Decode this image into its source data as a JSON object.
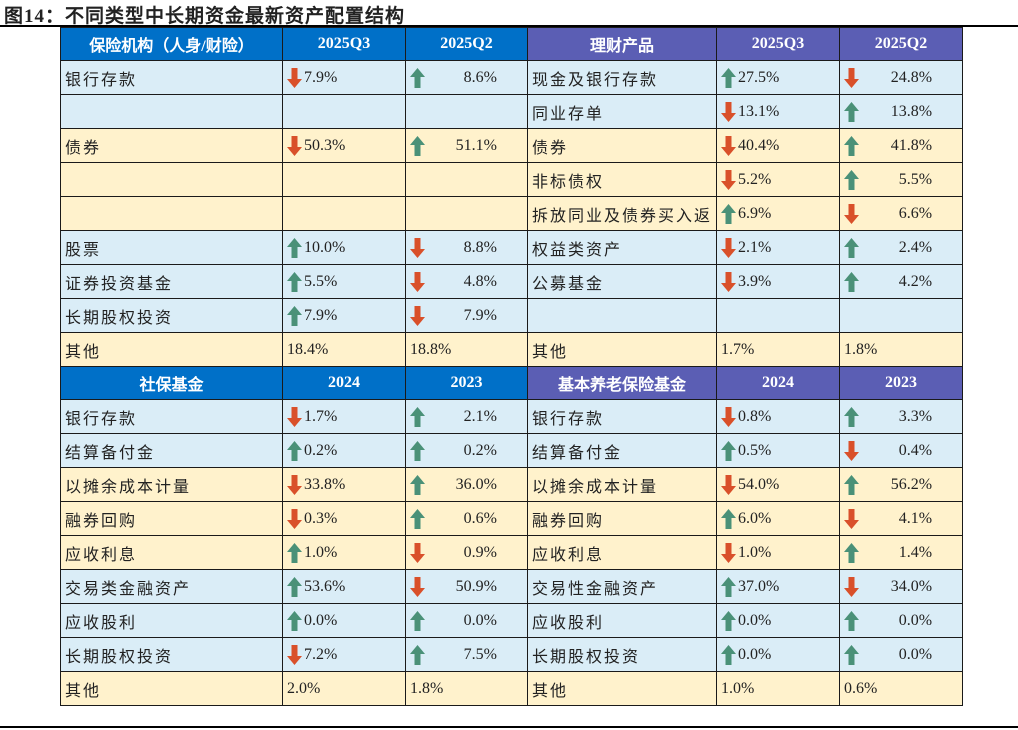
{
  "title": "图14：不同类型中长期资金最新资产配置结构",
  "colors": {
    "up": "#4A9178",
    "down": "#D9502A",
    "header_blue": "#0070C8",
    "header_purple": "#5B5EB4",
    "row_blue": "#DAEDF7",
    "row_yellow": "#FFF2CC"
  },
  "sections": [
    {
      "headers": [
        "保险机构（人身/财险）",
        "2025Q3",
        "2025Q2",
        "理财产品",
        "2025Q3",
        "2025Q2"
      ],
      "rows": [
        {
          "color": "blue",
          "l": "银行存款",
          "l1": {
            "dir": "down",
            "v": "7.9%"
          },
          "l2": {
            "dir": "up",
            "v": "8.6%"
          },
          "r": "现金及银行存款",
          "r1": {
            "dir": "up",
            "v": "27.5%"
          },
          "r2": {
            "dir": "down",
            "v": "24.8%"
          }
        },
        {
          "color": "blue",
          "l": "",
          "l1": null,
          "l2": null,
          "r": "同业存单",
          "r1": {
            "dir": "down",
            "v": "13.1%"
          },
          "r2": {
            "dir": "up",
            "v": "13.8%"
          }
        },
        {
          "color": "yellow",
          "l": "债券",
          "l1": {
            "dir": "down",
            "v": "50.3%"
          },
          "l2": {
            "dir": "up",
            "v": "51.1%"
          },
          "r": "债券",
          "r1": {
            "dir": "down",
            "v": "40.4%"
          },
          "r2": {
            "dir": "up",
            "v": "41.8%"
          }
        },
        {
          "color": "yellow",
          "l": "",
          "l1": null,
          "l2": null,
          "r": "非标债权",
          "r1": {
            "dir": "down",
            "v": "5.2%"
          },
          "r2": {
            "dir": "up",
            "v": "5.5%"
          }
        },
        {
          "color": "yellow",
          "l": "",
          "l1": null,
          "l2": null,
          "r": "拆放同业及债券买入返",
          "r1": {
            "dir": "up",
            "v": "6.9%"
          },
          "r2": {
            "dir": "down",
            "v": "6.6%"
          }
        },
        {
          "color": "blue",
          "l": "股票",
          "l1": {
            "dir": "up",
            "v": "10.0%"
          },
          "l2": {
            "dir": "down",
            "v": "8.8%"
          },
          "r": "权益类资产",
          "r1": {
            "dir": "down",
            "v": "2.1%"
          },
          "r2": {
            "dir": "up",
            "v": "2.4%"
          }
        },
        {
          "color": "blue",
          "l": "证券投资基金",
          "l1": {
            "dir": "up",
            "v": "5.5%"
          },
          "l2": {
            "dir": "down",
            "v": "4.8%"
          },
          "r": "公募基金",
          "r1": {
            "dir": "down",
            "v": "3.9%"
          },
          "r2": {
            "dir": "up",
            "v": "4.2%"
          }
        },
        {
          "color": "blue",
          "l": "长期股权投资",
          "l1": {
            "dir": "up",
            "v": "7.9%"
          },
          "l2": {
            "dir": "down",
            "v": "7.9%"
          },
          "r": "",
          "r1": null,
          "r2": null
        },
        {
          "color": "yellow",
          "l": "其他",
          "l1": {
            "dir": "",
            "v": "18.4%"
          },
          "l2": {
            "dir": "",
            "v": "18.8%"
          },
          "r": "其他",
          "r1": {
            "dir": "",
            "v": "1.7%"
          },
          "r2": {
            "dir": "",
            "v": "1.8%"
          }
        }
      ]
    },
    {
      "headers": [
        "社保基金",
        "2024",
        "2023",
        "基本养老保险基金",
        "2024",
        "2023"
      ],
      "rows": [
        {
          "color": "blue",
          "l": "银行存款",
          "l1": {
            "dir": "down",
            "v": "1.7%"
          },
          "l2": {
            "dir": "up",
            "v": "2.1%"
          },
          "r": "银行存款",
          "r1": {
            "dir": "down",
            "v": "0.8%"
          },
          "r2": {
            "dir": "up",
            "v": "3.3%"
          }
        },
        {
          "color": "blue",
          "l": "结算备付金",
          "l1": {
            "dir": "up",
            "v": "0.2%"
          },
          "l2": {
            "dir": "up",
            "v": "0.2%"
          },
          "r": "结算备付金",
          "r1": {
            "dir": "up",
            "v": "0.5%"
          },
          "r2": {
            "dir": "down",
            "v": "0.4%"
          }
        },
        {
          "color": "yellow",
          "l": "以摊余成本计量",
          "l1": {
            "dir": "down",
            "v": "33.8%"
          },
          "l2": {
            "dir": "up",
            "v": "36.0%"
          },
          "r": "以摊余成本计量",
          "r1": {
            "dir": "down",
            "v": "54.0%"
          },
          "r2": {
            "dir": "up",
            "v": "56.2%"
          }
        },
        {
          "color": "yellow",
          "l": "融券回购",
          "l1": {
            "dir": "down",
            "v": "0.3%"
          },
          "l2": {
            "dir": "up",
            "v": "0.6%"
          },
          "r": "融券回购",
          "r1": {
            "dir": "up",
            "v": "6.0%"
          },
          "r2": {
            "dir": "down",
            "v": "4.1%"
          }
        },
        {
          "color": "yellow",
          "l": "应收利息",
          "l1": {
            "dir": "up",
            "v": "1.0%"
          },
          "l2": {
            "dir": "down",
            "v": "0.9%"
          },
          "r": "应收利息",
          "r1": {
            "dir": "down",
            "v": "1.0%"
          },
          "r2": {
            "dir": "up",
            "v": "1.4%"
          }
        },
        {
          "color": "blue",
          "l": "交易类金融资产",
          "l1": {
            "dir": "up",
            "v": "53.6%"
          },
          "l2": {
            "dir": "down",
            "v": "50.9%"
          },
          "r": "交易性金融资产",
          "r1": {
            "dir": "up",
            "v": "37.0%"
          },
          "r2": {
            "dir": "down",
            "v": "34.0%"
          }
        },
        {
          "color": "blue",
          "l": "应收股利",
          "l1": {
            "dir": "up",
            "v": "0.0%"
          },
          "l2": {
            "dir": "up",
            "v": "0.0%"
          },
          "r": "应收股利",
          "r1": {
            "dir": "up",
            "v": "0.0%"
          },
          "r2": {
            "dir": "up",
            "v": "0.0%"
          }
        },
        {
          "color": "blue",
          "l": "长期股权投资",
          "l1": {
            "dir": "down",
            "v": "7.2%"
          },
          "l2": {
            "dir": "up",
            "v": "7.5%"
          },
          "r": "长期股权投资",
          "r1": {
            "dir": "up",
            "v": "0.0%"
          },
          "r2": {
            "dir": "up",
            "v": "0.0%"
          }
        },
        {
          "color": "yellow",
          "l": "其他",
          "l1": {
            "dir": "",
            "v": "2.0%"
          },
          "l2": {
            "dir": "",
            "v": "1.8%"
          },
          "r": "其他",
          "r1": {
            "dir": "",
            "v": "1.0%"
          },
          "r2": {
            "dir": "",
            "v": "0.6%"
          }
        }
      ]
    }
  ]
}
